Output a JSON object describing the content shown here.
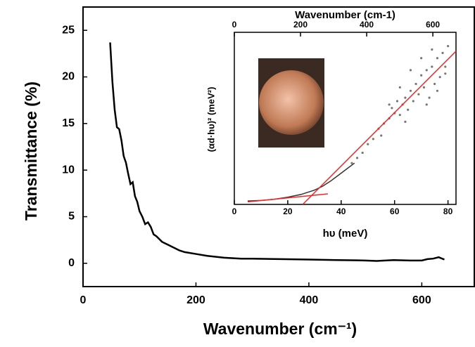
{
  "chart_data": [
    {
      "type": "line",
      "xlabel": "Wavenumber (cm⁻¹)",
      "ylabel": "Transmittance (%)",
      "xlim": [
        0,
        693
      ],
      "ylim": [
        -2.5,
        27.5
      ],
      "xticks": [
        0,
        200,
        400,
        600
      ],
      "yticks": [
        0,
        5,
        10,
        15,
        20,
        25
      ],
      "series": [
        {
          "color": "#000000",
          "x": [
            48,
            52,
            56,
            60,
            64,
            68,
            72,
            76,
            80,
            84,
            88,
            92,
            96,
            100,
            105,
            110,
            115,
            120,
            125,
            130,
            140,
            150,
            160,
            170,
            180,
            200,
            220,
            250,
            280,
            300,
            350,
            400,
            450,
            500,
            520,
            550,
            580,
            600,
            610,
            620,
            630,
            640
          ],
          "values": [
            23.7,
            19.5,
            16.5,
            14.6,
            14.4,
            13.2,
            11.5,
            10.8,
            9.6,
            8.5,
            8.7,
            7.2,
            6.6,
            5.6,
            5.0,
            4.2,
            4.4,
            3.9,
            3.1,
            2.9,
            2.3,
            2.0,
            1.7,
            1.4,
            1.2,
            1.0,
            0.8,
            0.6,
            0.5,
            0.5,
            0.45,
            0.4,
            0.35,
            0.3,
            0.25,
            0.35,
            0.3,
            0.3,
            0.45,
            0.5,
            0.65,
            0.4
          ]
        }
      ]
    },
    {
      "type": "scatter",
      "xlabel": "hυ (meV)",
      "ylabel": "(αd·hυ)² (meV²)",
      "x2label": "Wavenumber (cm-1)",
      "xlim": [
        0,
        83
      ],
      "xticks": [
        0,
        20,
        40,
        60,
        80
      ],
      "x2lim": [
        0,
        670
      ],
      "x2ticks": [
        0,
        200,
        400,
        600
      ],
      "ylim": [
        0,
        100
      ],
      "series": [
        {
          "mode": "line",
          "color": "#333333",
          "x": [
            5,
            10,
            15,
            20,
            25,
            30,
            33,
            36,
            39,
            42,
            45
          ],
          "values": [
            2,
            2.3,
            3,
            4.2,
            5.8,
            8.3,
            10.5,
            13.5,
            17,
            20.5,
            24
          ]
        },
        {
          "mode": "markers",
          "color": "#777777",
          "x": [
            44,
            46,
            48,
            50,
            52,
            54,
            55,
            56,
            58,
            59,
            60,
            61,
            62,
            63,
            64,
            65,
            66,
            67,
            68,
            69,
            70,
            71,
            72,
            73,
            74,
            75,
            76,
            77,
            78,
            79,
            80,
            66,
            70,
            74,
            62,
            58,
            64,
            72,
            76,
            79
          ],
          "values": [
            24,
            27,
            30,
            35,
            38,
            44,
            40,
            47,
            50,
            56,
            53,
            60,
            52,
            58,
            62,
            55,
            66,
            60,
            70,
            64,
            75,
            68,
            78,
            62,
            80,
            70,
            85,
            74,
            88,
            80,
            92,
            78,
            85,
            90,
            68,
            58,
            48,
            58,
            66,
            76
          ]
        },
        {
          "mode": "line",
          "color": "#ff2020",
          "x": [
            5,
            35
          ],
          "values": [
            1.5,
            6.1
          ]
        },
        {
          "mode": "line",
          "color": "#ff2020",
          "x": [
            25.6,
            83
          ],
          "values": [
            0,
            89
          ]
        }
      ]
    }
  ]
}
